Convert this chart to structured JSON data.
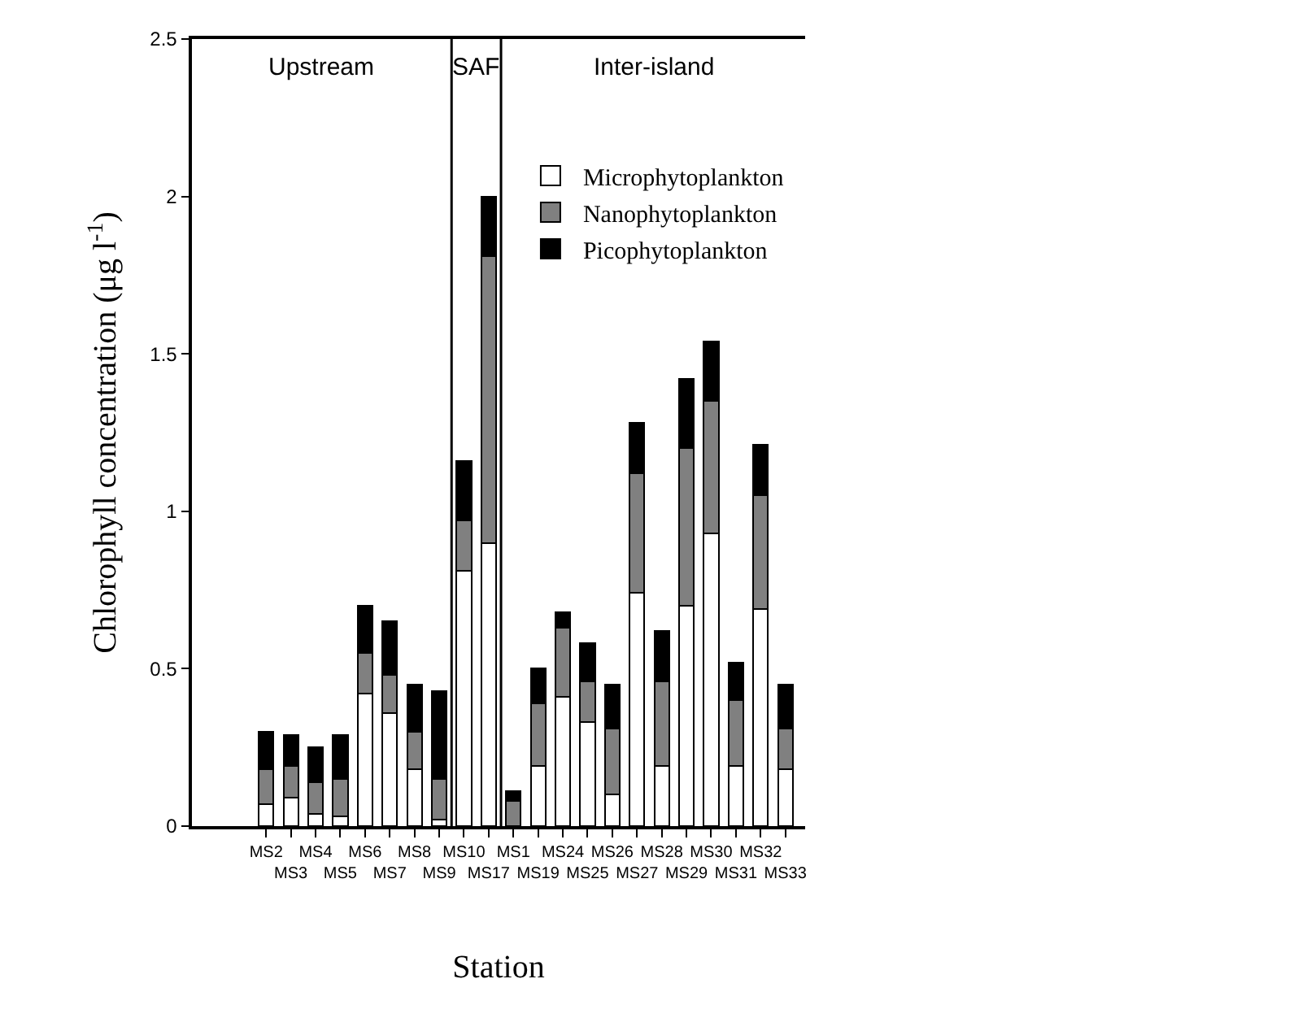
{
  "chart_data": {
    "type": "bar",
    "stacked": true,
    "xlabel": "Station",
    "ylabel": "Chlorophyll concentration (μg l$^{-1}$)",
    "categories": [
      "MS2",
      "MS3",
      "MS4",
      "MS5",
      "MS6",
      "MS7",
      "MS8",
      "MS9",
      "MS10",
      "MS17",
      "MS1",
      "MS19",
      "MS24",
      "MS25",
      "MS26",
      "MS27",
      "MS28",
      "MS29",
      "MS30",
      "MS31",
      "MS32",
      "MS33"
    ],
    "series": [
      {
        "name": "Microphytoplankton",
        "color": "#ffffff",
        "values": [
          0.07,
          0.09,
          0.04,
          0.03,
          0.42,
          0.36,
          0.18,
          0.02,
          0.81,
          0.9,
          null,
          0.19,
          0.41,
          0.33,
          0.1,
          0.74,
          0.19,
          0.7,
          0.93,
          0.19,
          0.69,
          0.18
        ]
      },
      {
        "name": "Nanophytoplankton",
        "color": "#808080",
        "values": [
          0.11,
          0.1,
          0.1,
          0.12,
          0.13,
          0.12,
          0.12,
          0.13,
          0.16,
          0.91,
          0.08,
          0.2,
          0.22,
          0.13,
          0.21,
          0.38,
          0.27,
          0.5,
          0.42,
          0.21,
          0.36,
          0.13
        ]
      },
      {
        "name": "Picophytoplankton",
        "color": "#000000",
        "values": [
          0.12,
          0.1,
          0.11,
          0.14,
          0.15,
          0.17,
          0.15,
          0.28,
          0.19,
          0.19,
          0.03,
          0.11,
          0.05,
          0.12,
          0.14,
          0.16,
          0.16,
          0.22,
          0.19,
          0.12,
          0.16,
          0.14
        ]
      }
    ],
    "ylim": [
      0,
      2.5
    ],
    "yticks": [
      0,
      0.5,
      1,
      1.5,
      2,
      2.5
    ],
    "legend": "top right",
    "annotations": [
      "Upstream",
      "SAF",
      "Inter-island"
    ]
  }
}
